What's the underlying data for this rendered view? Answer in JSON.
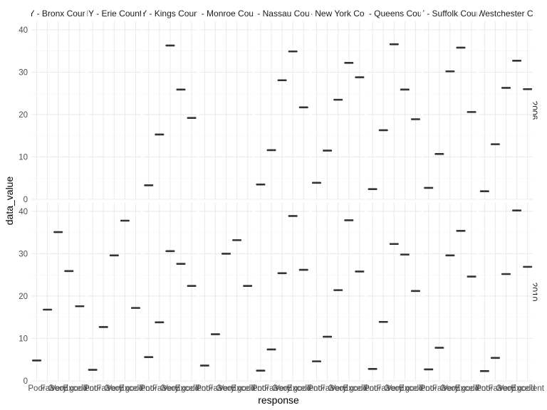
{
  "chart_data": {
    "type": "boxplot-facet",
    "xlabel": "response",
    "ylabel": "data_value",
    "ylim": [
      0,
      42
    ],
    "yticks": [
      0,
      10,
      20,
      30,
      40
    ],
    "categories": [
      "Poor",
      "Fair",
      "Good",
      "Very good",
      "Excellent"
    ],
    "columns": [
      "NY - Bronx County",
      "NY - Erie County",
      "NY - Kings County",
      "NY - Monroe County",
      "NY - Nassau County",
      "NY - New York County",
      "NY - Queens County",
      "NY - Suffolk County",
      "NY - Westchester County"
    ],
    "rows": [
      "2006",
      "2010"
    ],
    "grid": true,
    "panels": [
      {
        "row": "2006",
        "column": "NY - Bronx County",
        "values": []
      },
      {
        "row": "2006",
        "column": "NY - Erie County",
        "values": []
      },
      {
        "row": "2006",
        "column": "NY - Kings County",
        "values": [
          3.3,
          15.3,
          36.3,
          25.9,
          19.2
        ]
      },
      {
        "row": "2006",
        "column": "NY - Monroe County",
        "values": []
      },
      {
        "row": "2006",
        "column": "NY - Nassau County",
        "values": [
          3.5,
          11.6,
          28.1,
          34.9,
          21.7
        ]
      },
      {
        "row": "2006",
        "column": "NY - New York County",
        "values": [
          3.9,
          11.5,
          23.5,
          32.2,
          28.8
        ]
      },
      {
        "row": "2006",
        "column": "NY - Queens County",
        "values": [
          2.4,
          16.3,
          36.6,
          25.9,
          18.9
        ]
      },
      {
        "row": "2006",
        "column": "NY - Suffolk County",
        "values": [
          2.7,
          10.7,
          30.2,
          35.8,
          20.6
        ]
      },
      {
        "row": "2006",
        "column": "NY - Westchester County",
        "values": [
          1.9,
          13.0,
          26.3,
          32.7,
          26.0
        ]
      },
      {
        "row": "2010",
        "column": "NY - Bronx County",
        "values": [
          4.8,
          16.8,
          35.1,
          25.9,
          17.6
        ]
      },
      {
        "row": "2010",
        "column": "NY - Erie County",
        "values": [
          2.6,
          12.7,
          29.6,
          37.8,
          17.2
        ]
      },
      {
        "row": "2010",
        "column": "NY - Kings County",
        "values": [
          5.6,
          13.8,
          30.6,
          27.6,
          22.4
        ]
      },
      {
        "row": "2010",
        "column": "NY - Monroe County",
        "values": [
          3.6,
          11.0,
          30.0,
          33.2,
          22.4
        ]
      },
      {
        "row": "2010",
        "column": "NY - Nassau County",
        "values": [
          2.4,
          7.4,
          25.4,
          38.9,
          26.2
        ]
      },
      {
        "row": "2010",
        "column": "NY - New York County",
        "values": [
          4.6,
          10.4,
          21.4,
          37.9,
          25.8
        ]
      },
      {
        "row": "2010",
        "column": "NY - Queens County",
        "values": [
          2.8,
          13.9,
          32.3,
          29.8,
          21.2
        ]
      },
      {
        "row": "2010",
        "column": "NY - Suffolk County",
        "values": [
          2.7,
          7.8,
          29.6,
          35.4,
          24.6
        ]
      },
      {
        "row": "2010",
        "column": "NY - Westchester County",
        "values": [
          2.3,
          5.4,
          25.2,
          40.2,
          26.9
        ]
      }
    ]
  },
  "colors": {
    "panel_background": "#ffffff",
    "grid_major": "#ebebeb",
    "grid_minor": "#f5f5f5",
    "box": "#333333",
    "text": "#4d4d4d"
  }
}
